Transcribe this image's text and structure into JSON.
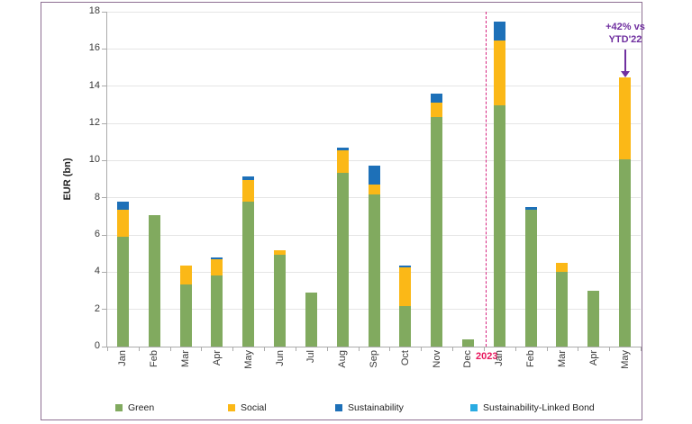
{
  "frame": {
    "border_color": "#8d6f92"
  },
  "y_axis": {
    "title": "EUR (bn)",
    "ticks": [
      0,
      2,
      4,
      6,
      8,
      10,
      12,
      14,
      16,
      18
    ]
  },
  "separator": {
    "label": "2023",
    "line_color": "#d6217e",
    "label_color": "#e8175d",
    "after_category_index": 11
  },
  "annotation": {
    "line1": "+42% vs",
    "line2": "YTD'22",
    "color": "#7030a0",
    "points_at": "May 2023"
  },
  "chart_data": {
    "type": "bar",
    "stacked": true,
    "title": "",
    "xlabel": "",
    "ylabel": "EUR (bn)",
    "ylim": [
      0,
      18
    ],
    "grid": true,
    "legend_position": "bottom",
    "categories": [
      "Jan",
      "Feb",
      "Mar",
      "Apr",
      "May",
      "Jun",
      "Jul",
      "Aug",
      "Sep",
      "Oct",
      "Nov",
      "Dec",
      "Jan",
      "Feb",
      "Mar",
      "Apr",
      "May"
    ],
    "category_years": [
      "2022",
      "2022",
      "2022",
      "2022",
      "2022",
      "2022",
      "2022",
      "2022",
      "2022",
      "2022",
      "2022",
      "2022",
      "2023",
      "2023",
      "2023",
      "2023",
      "2023"
    ],
    "series": [
      {
        "name": "Green",
        "color": "#81aa5f",
        "values": [
          5.9,
          7.05,
          3.35,
          3.8,
          7.8,
          4.95,
          2.9,
          9.35,
          8.2,
          2.2,
          12.35,
          0.4,
          12.95,
          7.35,
          4.0,
          3.0,
          10.05
        ]
      },
      {
        "name": "Social",
        "color": "#fbb817",
        "values": [
          1.45,
          0,
          1.0,
          0.9,
          1.15,
          0.25,
          0,
          1.2,
          0.5,
          2.05,
          0.75,
          0,
          3.5,
          0,
          0.5,
          0,
          4.4
        ]
      },
      {
        "name": "Sustainability",
        "color": "#1d70b8",
        "values": [
          0.45,
          0,
          0,
          0.1,
          0.2,
          0,
          0,
          0.15,
          1.05,
          0.1,
          0.5,
          0,
          1.0,
          0.15,
          0,
          0,
          0
        ]
      },
      {
        "name": "Sustainability-Linked Bond",
        "color": "#29abe2",
        "values": [
          0,
          0,
          0,
          0,
          0,
          0,
          0,
          0,
          0,
          0,
          0,
          0,
          0,
          0,
          0,
          0,
          0
        ]
      }
    ],
    "totals": [
      7.8,
      7.05,
      4.35,
      4.8,
      9.15,
      5.2,
      2.9,
      10.7,
      9.75,
      4.35,
      13.6,
      0.4,
      17.45,
      7.5,
      4.5,
      3.0,
      14.45
    ],
    "annotation_text": "+42% vs YTD'22"
  },
  "legend_item_lefts": [
    82,
    207,
    326,
    476
  ]
}
